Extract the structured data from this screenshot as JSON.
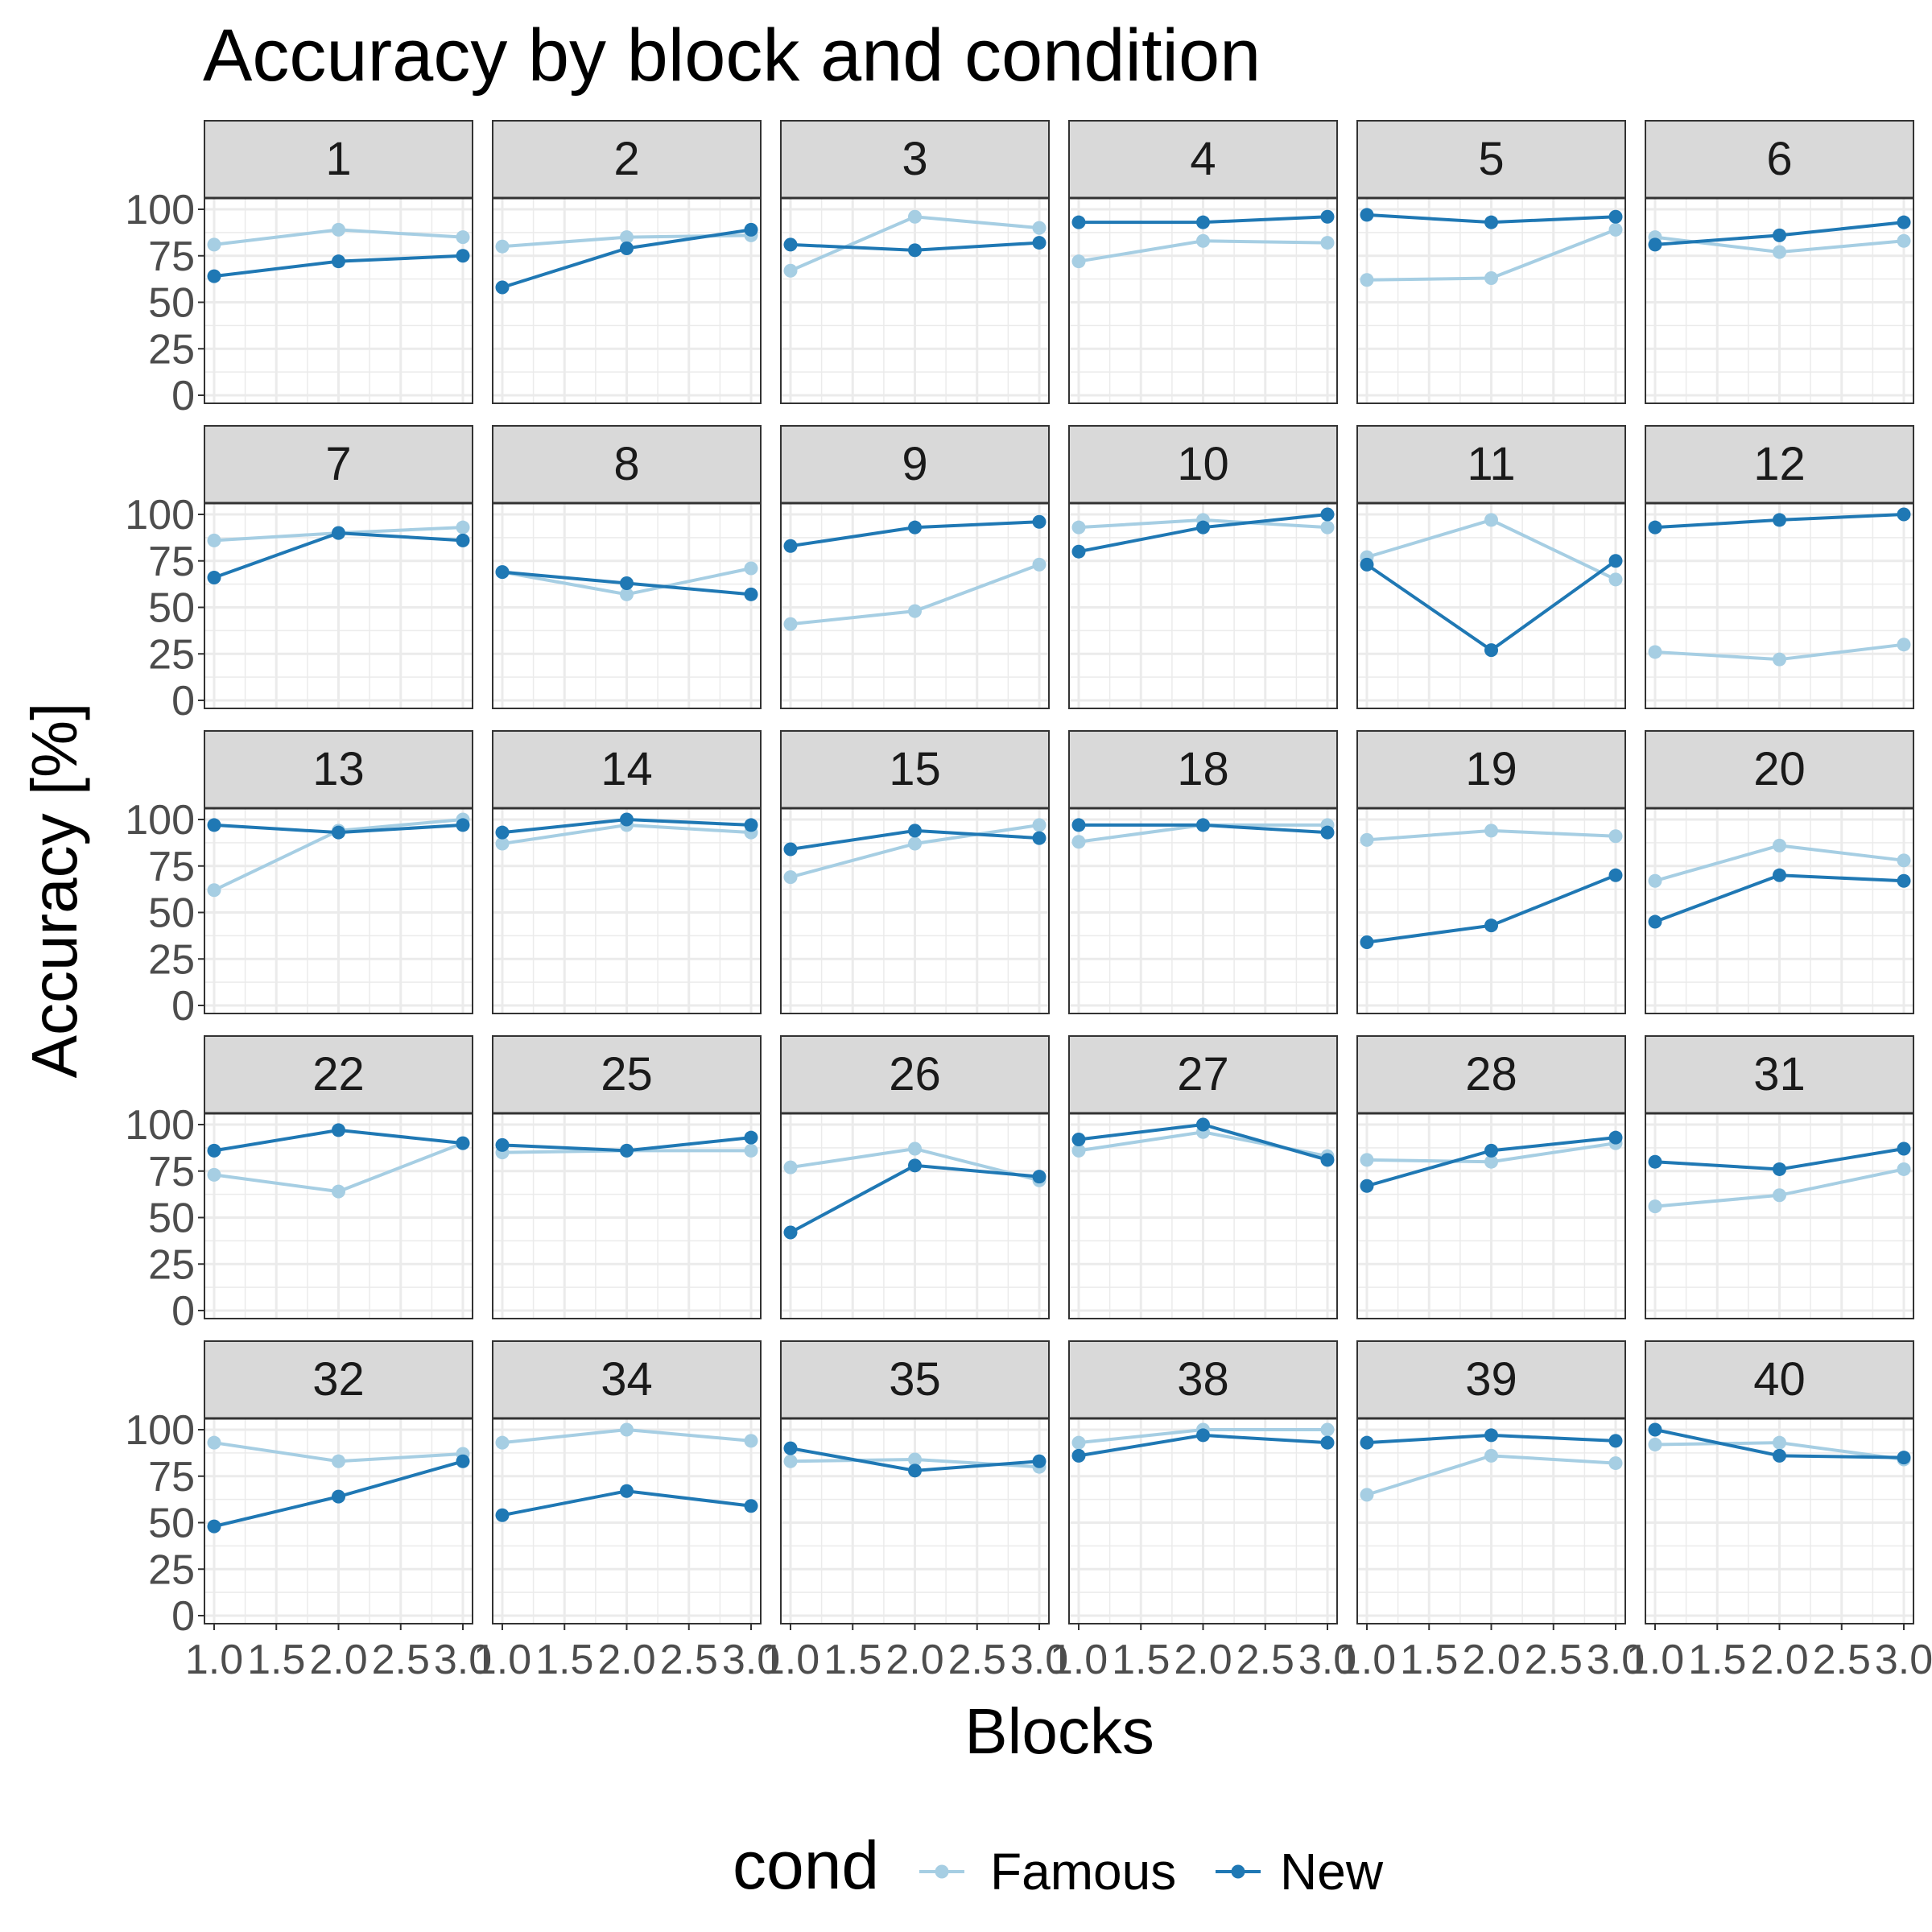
{
  "chart_data": {
    "type": "line",
    "title": "Accuracy by block and condition",
    "xlabel": "Blocks",
    "ylabel": "Accuracy [%]",
    "x": [
      1,
      2,
      3
    ],
    "xlim": [
      1,
      3
    ],
    "xticks": [
      "1.0",
      "1.5",
      "2.0",
      "2.5",
      "3.0"
    ],
    "ylim": [
      0,
      100
    ],
    "yticks": [
      "0",
      "25",
      "50",
      "75",
      "100"
    ],
    "grid": true,
    "legend": {
      "title": "cond",
      "position": "bottom",
      "entries": [
        "Famous",
        "New"
      ]
    },
    "series_colors": {
      "Famous": "#a6cee3",
      "New": "#1f78b4"
    },
    "panels": [
      {
        "label": "1",
        "series": [
          {
            "name": "Famous",
            "values": [
              81,
              89,
              85
            ]
          },
          {
            "name": "New",
            "values": [
              64,
              72,
              75
            ]
          }
        ]
      },
      {
        "label": "2",
        "series": [
          {
            "name": "Famous",
            "values": [
              80,
              85,
              86
            ]
          },
          {
            "name": "New",
            "values": [
              58,
              79,
              89
            ]
          }
        ]
      },
      {
        "label": "3",
        "series": [
          {
            "name": "Famous",
            "values": [
              67,
              96,
              90
            ]
          },
          {
            "name": "New",
            "values": [
              81,
              78,
              82
            ]
          }
        ]
      },
      {
        "label": "4",
        "series": [
          {
            "name": "Famous",
            "values": [
              72,
              83,
              82
            ]
          },
          {
            "name": "New",
            "values": [
              93,
              93,
              96
            ]
          }
        ]
      },
      {
        "label": "5",
        "series": [
          {
            "name": "Famous",
            "values": [
              62,
              63,
              89
            ]
          },
          {
            "name": "New",
            "values": [
              97,
              93,
              96
            ]
          }
        ]
      },
      {
        "label": "6",
        "series": [
          {
            "name": "Famous",
            "values": [
              85,
              77,
              83
            ]
          },
          {
            "name": "New",
            "values": [
              81,
              86,
              93
            ]
          }
        ]
      },
      {
        "label": "7",
        "series": [
          {
            "name": "Famous",
            "values": [
              86,
              90,
              93
            ]
          },
          {
            "name": "New",
            "values": [
              66,
              90,
              86
            ]
          }
        ]
      },
      {
        "label": "8",
        "series": [
          {
            "name": "Famous",
            "values": [
              69,
              57,
              71
            ]
          },
          {
            "name": "New",
            "values": [
              69,
              63,
              57
            ]
          }
        ]
      },
      {
        "label": "9",
        "series": [
          {
            "name": "Famous",
            "values": [
              41,
              48,
              73
            ]
          },
          {
            "name": "New",
            "values": [
              83,
              93,
              96
            ]
          }
        ]
      },
      {
        "label": "10",
        "series": [
          {
            "name": "Famous",
            "values": [
              93,
              97,
              93
            ]
          },
          {
            "name": "New",
            "values": [
              80,
              93,
              100
            ]
          }
        ]
      },
      {
        "label": "11",
        "series": [
          {
            "name": "Famous",
            "values": [
              77,
              97,
              65
            ]
          },
          {
            "name": "New",
            "values": [
              73,
              27,
              75
            ]
          }
        ]
      },
      {
        "label": "12",
        "series": [
          {
            "name": "Famous",
            "values": [
              26,
              22,
              30
            ]
          },
          {
            "name": "New",
            "values": [
              93,
              97,
              100
            ]
          }
        ]
      },
      {
        "label": "13",
        "series": [
          {
            "name": "Famous",
            "values": [
              62,
              94,
              100
            ]
          },
          {
            "name": "New",
            "values": [
              97,
              93,
              97
            ]
          }
        ]
      },
      {
        "label": "14",
        "series": [
          {
            "name": "Famous",
            "values": [
              87,
              97,
              93
            ]
          },
          {
            "name": "New",
            "values": [
              93,
              100,
              97
            ]
          }
        ]
      },
      {
        "label": "15",
        "series": [
          {
            "name": "Famous",
            "values": [
              69,
              87,
              97
            ]
          },
          {
            "name": "New",
            "values": [
              84,
              94,
              90
            ]
          }
        ]
      },
      {
        "label": "18",
        "series": [
          {
            "name": "Famous",
            "values": [
              88,
              97,
              97
            ]
          },
          {
            "name": "New",
            "values": [
              97,
              97,
              93
            ]
          }
        ]
      },
      {
        "label": "19",
        "series": [
          {
            "name": "Famous",
            "values": [
              89,
              94,
              91
            ]
          },
          {
            "name": "New",
            "values": [
              34,
              43,
              70
            ]
          }
        ]
      },
      {
        "label": "20",
        "series": [
          {
            "name": "Famous",
            "values": [
              67,
              86,
              78
            ]
          },
          {
            "name": "New",
            "values": [
              45,
              70,
              67
            ]
          }
        ]
      },
      {
        "label": "22",
        "series": [
          {
            "name": "Famous",
            "values": [
              73,
              64,
              90
            ]
          },
          {
            "name": "New",
            "values": [
              86,
              97,
              90
            ]
          }
        ]
      },
      {
        "label": "25",
        "series": [
          {
            "name": "Famous",
            "values": [
              85,
              86,
              86
            ]
          },
          {
            "name": "New",
            "values": [
              89,
              86,
              93
            ]
          }
        ]
      },
      {
        "label": "26",
        "series": [
          {
            "name": "Famous",
            "values": [
              77,
              87,
              70
            ]
          },
          {
            "name": "New",
            "values": [
              42,
              78,
              72
            ]
          }
        ]
      },
      {
        "label": "27",
        "series": [
          {
            "name": "Famous",
            "values": [
              86,
              96,
              83
            ]
          },
          {
            "name": "New",
            "values": [
              92,
              100,
              81
            ]
          }
        ]
      },
      {
        "label": "28",
        "series": [
          {
            "name": "Famous",
            "values": [
              81,
              80,
              90
            ]
          },
          {
            "name": "New",
            "values": [
              67,
              86,
              93
            ]
          }
        ]
      },
      {
        "label": "31",
        "series": [
          {
            "name": "Famous",
            "values": [
              56,
              62,
              76
            ]
          },
          {
            "name": "New",
            "values": [
              80,
              76,
              87
            ]
          }
        ]
      },
      {
        "label": "32",
        "series": [
          {
            "name": "Famous",
            "values": [
              93,
              83,
              87
            ]
          },
          {
            "name": "New",
            "values": [
              48,
              64,
              83
            ]
          }
        ]
      },
      {
        "label": "34",
        "series": [
          {
            "name": "Famous",
            "values": [
              93,
              100,
              94
            ]
          },
          {
            "name": "New",
            "values": [
              54,
              67,
              59
            ]
          }
        ]
      },
      {
        "label": "35",
        "series": [
          {
            "name": "Famous",
            "values": [
              83,
              84,
              80
            ]
          },
          {
            "name": "New",
            "values": [
              90,
              78,
              83
            ]
          }
        ]
      },
      {
        "label": "38",
        "series": [
          {
            "name": "Famous",
            "values": [
              93,
              100,
              100
            ]
          },
          {
            "name": "New",
            "values": [
              86,
              97,
              93
            ]
          }
        ]
      },
      {
        "label": "39",
        "series": [
          {
            "name": "Famous",
            "values": [
              65,
              86,
              82
            ]
          },
          {
            "name": "New",
            "values": [
              93,
              97,
              94
            ]
          }
        ]
      },
      {
        "label": "40",
        "series": [
          {
            "name": "Famous",
            "values": [
              92,
              93,
              84
            ]
          },
          {
            "name": "New",
            "values": [
              100,
              86,
              85
            ]
          }
        ]
      }
    ]
  }
}
